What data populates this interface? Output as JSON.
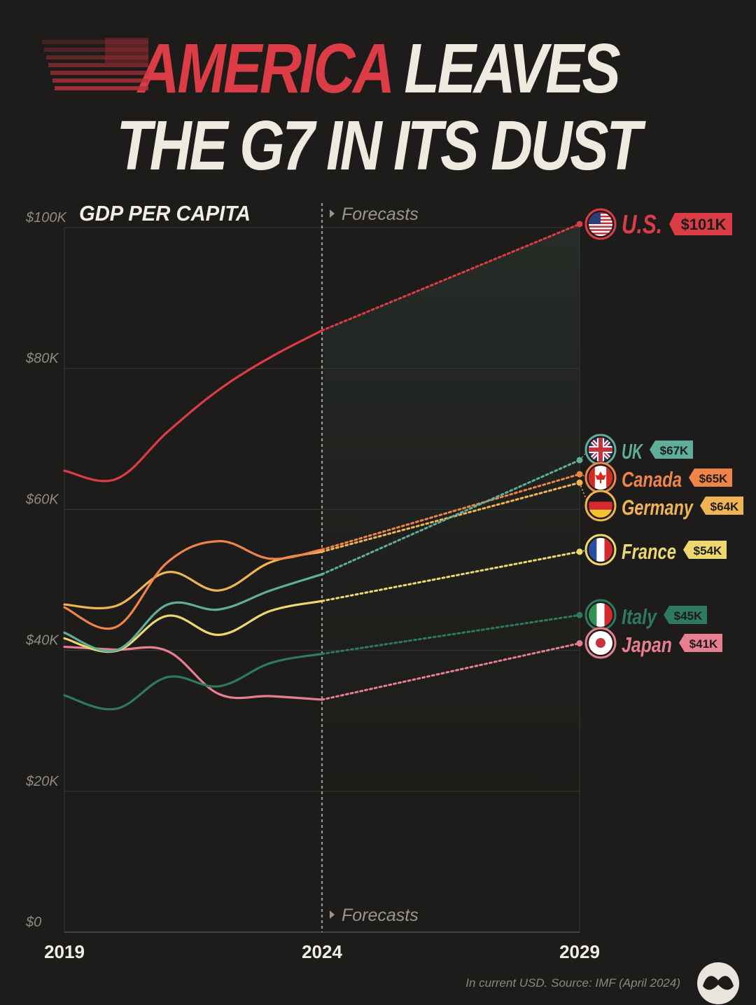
{
  "title": {
    "highlight": "AMERICA",
    "rest_line1": "LEAVES",
    "line2": "THE G7 IN ITS DUST",
    "highlight_color": "#dc3c46"
  },
  "source": "In current USD. Source: IMF (April 2024)",
  "logo_icon": "visual-capitalist-logo",
  "chart_data": {
    "type": "line",
    "title": "GDP PER CAPITA",
    "xlabel": "",
    "ylabel": "",
    "x_ticks": [
      "2019",
      "2024",
      "2029"
    ],
    "y_ticks": [
      {
        "value": 0,
        "label": "$0"
      },
      {
        "value": 20000,
        "label": "$20K"
      },
      {
        "value": 40000,
        "label": "$40K"
      },
      {
        "value": 60000,
        "label": "$60K"
      },
      {
        "value": 80000,
        "label": "$80K"
      },
      {
        "value": 100000,
        "label": "$100K"
      }
    ],
    "xlim": [
      2019,
      2029
    ],
    "ylim": [
      0,
      100000
    ],
    "grid": true,
    "forecast_start": 2024,
    "forecast_label": "Forecasts",
    "series": [
      {
        "name": "U.S.",
        "label": "$101K",
        "color": "#dc3c46",
        "flag": "us-flag-icon",
        "x": [
          2019,
          2020,
          2021,
          2022,
          2023,
          2024,
          2029
        ],
        "y": [
          65500,
          64300,
          71000,
          77000,
          81600,
          85400,
          100500
        ]
      },
      {
        "name": "UK",
        "label": "$67K",
        "color": "#5fae9a",
        "flag": "uk-flag-icon",
        "x": [
          2019,
          2020,
          2021,
          2022,
          2023,
          2024,
          2029
        ],
        "y": [
          42500,
          40000,
          46500,
          45800,
          48500,
          50800,
          67000
        ]
      },
      {
        "name": "Canada",
        "label": "$65K",
        "color": "#ef8448",
        "flag": "canada-flag-icon",
        "x": [
          2019,
          2020,
          2021,
          2022,
          2023,
          2024,
          2029
        ],
        "y": [
          46100,
          43300,
          52500,
          55500,
          53000,
          54300,
          65000
        ]
      },
      {
        "name": "Germany",
        "label": "$64K",
        "color": "#f0b552",
        "flag": "germany-flag-icon",
        "x": [
          2019,
          2020,
          2021,
          2022,
          2023,
          2024,
          2029
        ],
        "y": [
          46500,
          46300,
          51100,
          48500,
          52500,
          54000,
          63800
        ]
      },
      {
        "name": "France",
        "label": "$54K",
        "color": "#ecd86e",
        "flag": "france-flag-icon",
        "x": [
          2019,
          2020,
          2021,
          2022,
          2023,
          2024,
          2029
        ],
        "y": [
          41700,
          39900,
          44900,
          42200,
          45600,
          47000,
          54000
        ]
      },
      {
        "name": "Italy",
        "label": "$45K",
        "color": "#2d7a5f",
        "flag": "italy-flag-icon",
        "x": [
          2019,
          2020,
          2021,
          2022,
          2023,
          2024,
          2029
        ],
        "y": [
          33600,
          31700,
          36200,
          34900,
          38200,
          39500,
          45000
        ]
      },
      {
        "name": "Japan",
        "label": "$41K",
        "color": "#e87e91",
        "flag": "japan-flag-icon",
        "x": [
          2019,
          2020,
          2021,
          2022,
          2023,
          2024,
          2029
        ],
        "y": [
          40500,
          40100,
          39900,
          33800,
          33500,
          33000,
          41000
        ]
      }
    ]
  }
}
